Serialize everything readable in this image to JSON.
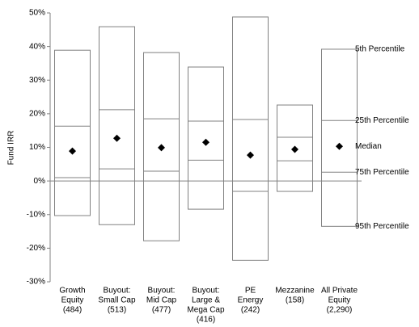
{
  "chart_data": {
    "type": "percentile-box",
    "y_label": "Fund IRR",
    "categories": [
      [
        "Growth",
        "Equity",
        "(484)"
      ],
      [
        "Buyout:",
        "Small Cap",
        "(513)"
      ],
      [
        "Buyout:",
        "Mid Cap",
        "(477)"
      ],
      [
        "Buyout:",
        "Large &",
        "Mega Cap",
        "(416)"
      ],
      [
        "PE",
        "Energy",
        "(242)"
      ],
      [
        "Mezzanine",
        "(158)"
      ],
      [
        "All Private",
        "Equity",
        "(2,290)"
      ]
    ],
    "series": [
      {
        "name": "5th Percentile",
        "values": [
          38.9,
          45.9,
          38.2,
          33.9,
          48.8,
          22.6,
          39.2
        ]
      },
      {
        "name": "25th Percentile",
        "values": [
          16.3,
          21.2,
          18.5,
          17.8,
          18.3,
          13.0,
          18.0
        ]
      },
      {
        "name": "Median",
        "values": [
          8.9,
          12.7,
          9.9,
          11.5,
          7.7,
          9.4,
          10.3
        ]
      },
      {
        "name": "75th Percentile",
        "values": [
          1.0,
          3.6,
          2.9,
          6.2,
          -3.1,
          6.0,
          2.6
        ]
      },
      {
        "name": "95th Percentile",
        "values": [
          -10.3,
          -13.0,
          -17.8,
          -8.4,
          -23.6,
          -3.1,
          -13.5
        ]
      }
    ],
    "ylim": [
      -30,
      50
    ],
    "yticks": [
      {
        "value": -30,
        "label": "-30%"
      },
      {
        "value": -20,
        "label": "-20%"
      },
      {
        "value": -10,
        "label": "-10%"
      },
      {
        "value": 0,
        "label": "0%"
      },
      {
        "value": 10,
        "label": "10%"
      },
      {
        "value": 20,
        "label": "20%"
      },
      {
        "value": 30,
        "label": "30%"
      },
      {
        "value": 40,
        "label": "40%"
      },
      {
        "value": 50,
        "label": "50%"
      }
    ],
    "color": "#000000"
  }
}
